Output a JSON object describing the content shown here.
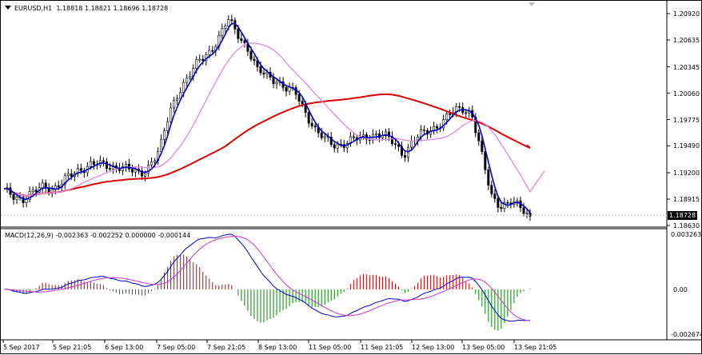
{
  "main": {
    "symbol": "EURUSD,H1",
    "ohlc": "1.18818 1.18821 1.18696 1.18728",
    "current_price": "1.18728",
    "price_levels": [
      "1.20920",
      "1.20635",
      "1.20345",
      "1.20060",
      "1.19775",
      "1.19490",
      "1.19200",
      "1.18915",
      "1.18630"
    ]
  },
  "macd": {
    "label": "MACD(12,26,9) -0.002363 -0.002252 0.000000 -0.000144",
    "levels": [
      "0.003263",
      "0.00",
      "-0.002674"
    ]
  },
  "time_axis": [
    "5 Sep 2017",
    "5 Sep 21:05",
    "6 Sep 13:00",
    "7 Sep 05:00",
    "7 Sep 21:05",
    "8 Sep 13:00",
    "11 Sep 05:00",
    "11 Sep 21:05",
    "12 Sep 13:00",
    "13 Sep 05:00",
    "13 Sep 21:05"
  ],
  "colors": {
    "candle": "#000000",
    "fast_ma": "#0000cc",
    "slow_ma": "#e08ee0",
    "long_ma": "#dd0000",
    "macd_pos": "#cc0000",
    "macd_neg": "#008800",
    "macd_main": "#0000cc",
    "macd_signal": "#cc33cc"
  },
  "chart_data": {
    "type": "line",
    "title": "EURUSD,H1",
    "series": [
      {
        "name": "EURUSD",
        "values": [
          1.19,
          1.1895,
          1.1892,
          1.1898,
          1.1905,
          1.1903,
          1.191,
          1.1918,
          1.1925,
          1.193,
          1.1928,
          1.1926,
          1.1928,
          1.1922,
          1.1918,
          1.193,
          1.1945,
          1.1985,
          1.201,
          1.2025,
          1.204,
          1.205,
          1.2065,
          1.2085,
          1.207,
          1.2055,
          1.203,
          1.2025,
          1.202,
          1.201,
          1.2005,
          1.1985,
          1.1965,
          1.1955,
          1.195,
          1.1952,
          1.1956,
          1.1958,
          1.1962,
          1.196,
          1.1952,
          1.194,
          1.1955,
          1.1962,
          1.1968,
          1.1975,
          1.1985,
          1.199,
          1.1985,
          1.194,
          1.1895,
          1.1885,
          1.1888,
          1.1882,
          1.18728
        ]
      }
    ],
    "ylim": [
      1.1863,
      1.2092
    ]
  }
}
